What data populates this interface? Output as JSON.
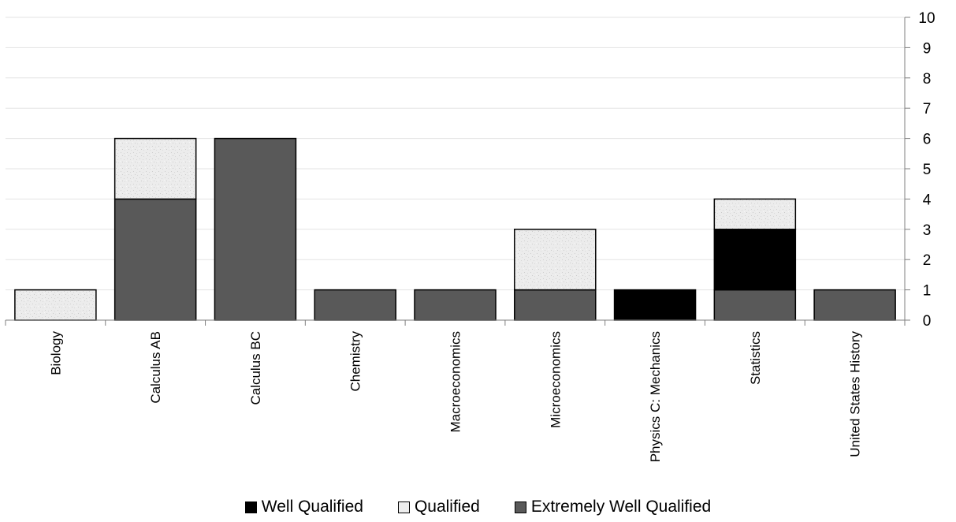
{
  "chart_data": {
    "type": "bar",
    "stacked": true,
    "categories": [
      "Biology",
      "Calculus AB",
      "Calculus BC",
      "Chemistry",
      "Macroeconomics",
      "Microeconomics",
      "Physics C: Mechanics",
      "Statistics",
      "United States History"
    ],
    "series": [
      {
        "name": "Extremely Well Qualified",
        "color": "#595959",
        "values": [
          0,
          4,
          6,
          1,
          1,
          1,
          0,
          1,
          1
        ]
      },
      {
        "name": "Well Qualified",
        "color": "#000000",
        "values": [
          0,
          0,
          0,
          0,
          0,
          0,
          1,
          2,
          0
        ]
      },
      {
        "name": "Qualified",
        "color": "#eeeeee",
        "values": [
          1,
          2,
          0,
          0,
          0,
          2,
          0,
          1,
          0
        ]
      }
    ],
    "legend_order": [
      "Well Qualified",
      "Qualified",
      "Extremely Well Qualified"
    ],
    "y_ticks": [
      "0",
      "1",
      "2",
      "3",
      "4",
      "5",
      "6",
      "7",
      "8",
      "9",
      "10"
    ],
    "ylim": [
      0,
      10
    ],
    "y_axis_side": "right",
    "grid": true,
    "legend_position": "bottom",
    "title": "",
    "xlabel": "",
    "ylabel": ""
  }
}
